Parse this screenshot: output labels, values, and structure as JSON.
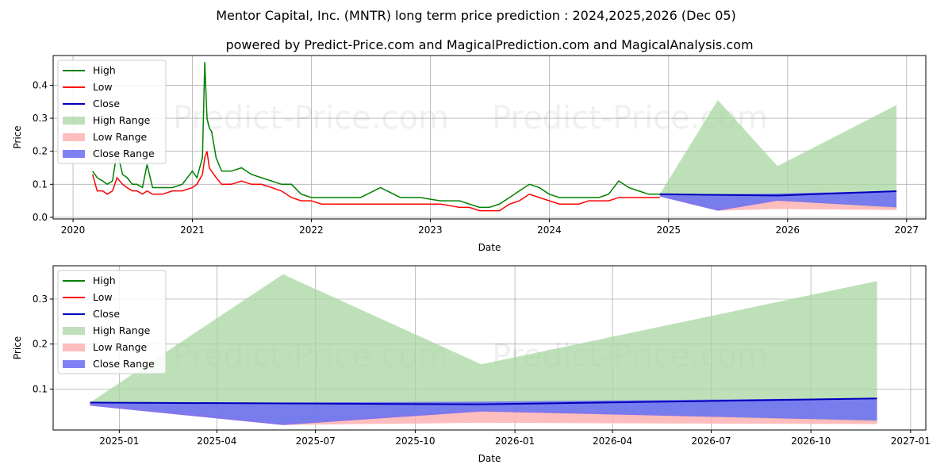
{
  "title": "Mentor Capital, Inc. (MNTR) long term price prediction : 2024,2025,2026 (Dec 05)",
  "subtitle": "powered by Predict-Price.com and MagicalPrediction.com and MagicalAnalysis.com",
  "watermark": "Predict-Price.com",
  "colors": {
    "high": "#008000",
    "low": "#ff0000",
    "close": "#0000bb",
    "high_range": "#a8d5a2",
    "low_range": "#ffb3b3",
    "close_range": "#6b6bf5"
  },
  "chart_data": [
    {
      "type": "line",
      "xlabel": "Date",
      "ylabel": "Price",
      "x_ticks": [
        "2020",
        "2021",
        "2022",
        "2023",
        "2024",
        "2025",
        "2026",
        "2027"
      ],
      "y_ticks": [
        "0.0",
        "0.1",
        "0.2",
        "0.3",
        "0.4"
      ],
      "xlim": [
        "2019-11-01",
        "2027-03-01"
      ],
      "ylim": [
        -0.005,
        0.49
      ],
      "grid": true,
      "legend_position": "top-left",
      "legend": [
        "High",
        "Low",
        "Close",
        "High Range",
        "Low Range",
        "Close Range"
      ],
      "history": {
        "dates": [
          "2020-03-01",
          "2020-03-15",
          "2020-04-01",
          "2020-04-15",
          "2020-05-01",
          "2020-05-15",
          "2020-06-01",
          "2020-06-15",
          "2020-07-01",
          "2020-07-15",
          "2020-08-01",
          "2020-08-15",
          "2020-09-01",
          "2020-10-01",
          "2020-11-01",
          "2020-12-01",
          "2021-01-01",
          "2021-01-15",
          "2021-02-01",
          "2021-02-08",
          "2021-02-15",
          "2021-02-22",
          "2021-03-01",
          "2021-03-15",
          "2021-04-01",
          "2021-05-01",
          "2021-06-01",
          "2021-07-01",
          "2021-08-01",
          "2021-09-01",
          "2021-10-01",
          "2021-11-01",
          "2021-12-01",
          "2022-01-01",
          "2022-02-01",
          "2022-04-01",
          "2022-06-01",
          "2022-08-01",
          "2022-10-01",
          "2022-12-01",
          "2023-02-01",
          "2023-04-01",
          "2023-05-01",
          "2023-06-01",
          "2023-07-01",
          "2023-08-01",
          "2023-09-01",
          "2023-10-01",
          "2023-11-01",
          "2023-12-01",
          "2024-01-01",
          "2024-02-01",
          "2024-03-01",
          "2024-04-01",
          "2024-05-01",
          "2024-06-01",
          "2024-07-01",
          "2024-08-01",
          "2024-09-01",
          "2024-10-01",
          "2024-11-01",
          "2024-12-05"
        ],
        "high": [
          0.14,
          0.12,
          0.11,
          0.1,
          0.11,
          0.2,
          0.13,
          0.12,
          0.1,
          0.1,
          0.09,
          0.16,
          0.09,
          0.09,
          0.09,
          0.1,
          0.14,
          0.12,
          0.18,
          0.47,
          0.3,
          0.27,
          0.26,
          0.18,
          0.14,
          0.14,
          0.15,
          0.13,
          0.12,
          0.11,
          0.1,
          0.1,
          0.07,
          0.06,
          0.06,
          0.06,
          0.06,
          0.09,
          0.06,
          0.06,
          0.05,
          0.05,
          0.04,
          0.03,
          0.03,
          0.04,
          0.06,
          0.08,
          0.1,
          0.09,
          0.07,
          0.06,
          0.06,
          0.06,
          0.06,
          0.06,
          0.07,
          0.11,
          0.09,
          0.08,
          0.07,
          0.07
        ],
        "low": [
          0.13,
          0.08,
          0.08,
          0.07,
          0.08,
          0.12,
          0.1,
          0.09,
          0.08,
          0.08,
          0.07,
          0.08,
          0.07,
          0.07,
          0.08,
          0.08,
          0.09,
          0.1,
          0.13,
          0.18,
          0.2,
          0.15,
          0.14,
          0.12,
          0.1,
          0.1,
          0.11,
          0.1,
          0.1,
          0.09,
          0.08,
          0.06,
          0.05,
          0.05,
          0.04,
          0.04,
          0.04,
          0.04,
          0.04,
          0.04,
          0.04,
          0.03,
          0.03,
          0.02,
          0.02,
          0.02,
          0.04,
          0.05,
          0.07,
          0.06,
          0.05,
          0.04,
          0.04,
          0.04,
          0.05,
          0.05,
          0.05,
          0.06,
          0.06,
          0.06,
          0.06,
          0.06
        ]
      },
      "prediction": {
        "dates": [
          "2024-12-05",
          "2025-06-01",
          "2025-12-01",
          "2026-12-01"
        ],
        "high_range": [
          [
            0.07,
            0.07
          ],
          [
            0.02,
            0.355
          ],
          [
            0.055,
            0.155
          ],
          [
            0.025,
            0.34
          ]
        ],
        "low_range": [
          [
            0.063,
            0.07
          ],
          [
            0.02,
            0.025
          ],
          [
            0.025,
            0.055
          ],
          [
            0.022,
            0.03
          ]
        ],
        "close_range": [
          [
            0.063,
            0.07
          ],
          [
            0.02,
            0.07
          ],
          [
            0.05,
            0.072
          ],
          [
            0.03,
            0.08
          ]
        ],
        "close": [
          0.07,
          0.068,
          0.066,
          0.079
        ]
      }
    },
    {
      "type": "line",
      "xlabel": "Date",
      "ylabel": "Price",
      "x_ticks": [
        "2025-01",
        "2025-04",
        "2025-07",
        "2025-10",
        "2026-01",
        "2026-04",
        "2026-07",
        "2026-10",
        "2027-01"
      ],
      "y_ticks": [
        "0.1",
        "0.2",
        "0.3"
      ],
      "xlim": [
        "2024-11-01",
        "2027-01-15"
      ],
      "ylim": [
        0.009,
        0.374
      ],
      "grid": true,
      "legend_position": "top-left",
      "legend": [
        "High",
        "Low",
        "Close",
        "High Range",
        "Low Range",
        "Close Range"
      ]
    }
  ]
}
